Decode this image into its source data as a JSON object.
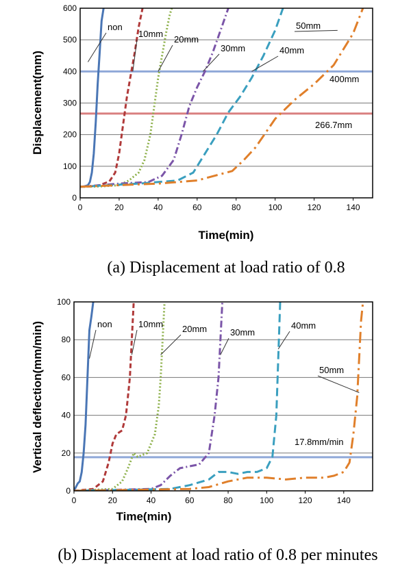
{
  "chart_data": [
    {
      "type": "line",
      "caption": "(a) Displacement at load ratio of 0.8",
      "xlabel": "Time(min)",
      "ylabel": "Displacement(mm)",
      "xlim": [
        0,
        150
      ],
      "ylim": [
        0,
        600
      ],
      "xticks": [
        0,
        20,
        40,
        60,
        80,
        100,
        120,
        140
      ],
      "yticks": [
        0,
        100,
        200,
        300,
        400,
        500,
        600
      ],
      "grid": true,
      "series": [
        {
          "name": "non",
          "color": "#4a76b5",
          "dash": "solid",
          "x": [
            0,
            2,
            4,
            5,
            6,
            7,
            8,
            9,
            10,
            11,
            12
          ],
          "y": [
            35,
            36,
            40,
            50,
            80,
            140,
            240,
            360,
            460,
            560,
            600
          ]
        },
        {
          "name": "10mm",
          "color": "#b03a3a",
          "dash": "dash",
          "x": [
            0,
            5,
            10,
            15,
            18,
            20,
            22,
            24,
            26,
            28,
            30,
            32
          ],
          "y": [
            35,
            36,
            40,
            52,
            80,
            140,
            230,
            320,
            390,
            460,
            540,
            600
          ]
        },
        {
          "name": "20mm",
          "color": "#8db04a",
          "dash": "dot",
          "x": [
            0,
            10,
            20,
            25,
            30,
            33,
            36,
            38,
            40,
            42,
            44,
            46,
            47
          ],
          "y": [
            35,
            36,
            40,
            55,
            80,
            120,
            200,
            290,
            380,
            450,
            520,
            580,
            600
          ]
        },
        {
          "name": "30mm",
          "color": "#7b55a8",
          "dash": "dashdot",
          "x": [
            0,
            20,
            35,
            42,
            48,
            52,
            56,
            60,
            64,
            68,
            72,
            76
          ],
          "y": [
            35,
            45,
            50,
            70,
            120,
            200,
            290,
            350,
            400,
            460,
            530,
            600
          ]
        },
        {
          "name": "40mm",
          "color": "#3a9fbf",
          "dash": "longdash",
          "x": [
            0,
            30,
            50,
            58,
            64,
            70,
            76,
            82,
            88,
            94,
            100,
            104
          ],
          "y": [
            35,
            45,
            55,
            80,
            140,
            200,
            270,
            320,
            380,
            450,
            530,
            600
          ]
        },
        {
          "name": "50mm",
          "color": "#e07f2a",
          "dash": "longdashdot",
          "x": [
            0,
            40,
            60,
            78,
            84,
            90,
            100,
            110,
            120,
            130,
            140,
            145
          ],
          "y": [
            35,
            45,
            55,
            85,
            120,
            160,
            250,
            310,
            360,
            420,
            520,
            600
          ]
        }
      ],
      "reference_lines": [
        {
          "y": 400,
          "color": "#8fa8d8",
          "label": "400mm"
        },
        {
          "y": 266.7,
          "color": "#d97f7f",
          "label": "266.7mm"
        }
      ]
    },
    {
      "type": "line",
      "caption": "(b) Displacement at load ratio of 0.8 per minutes",
      "xlabel": "Time(min)",
      "ylabel": "Vertical deflection(mm/min)",
      "xlim": [
        0,
        155
      ],
      "ylim": [
        0,
        100
      ],
      "xticks": [
        0,
        20,
        40,
        60,
        80,
        100,
        120,
        140
      ],
      "yticks": [
        0,
        20,
        40,
        60,
        80,
        100
      ],
      "grid": true,
      "series": [
        {
          "name": "non",
          "color": "#4a76b5",
          "dash": "solid",
          "x": [
            0,
            1,
            2,
            3,
            4,
            5,
            6,
            7,
            8,
            9,
            10
          ],
          "y": [
            0,
            2,
            4,
            5,
            10,
            20,
            35,
            60,
            85,
            92,
            100
          ]
        },
        {
          "name": "10mm",
          "color": "#b03a3a",
          "dash": "dash",
          "x": [
            0,
            10,
            15,
            18,
            20,
            22,
            25,
            27,
            28,
            29,
            30,
            31
          ],
          "y": [
            0,
            1,
            5,
            15,
            25,
            30,
            32,
            40,
            50,
            60,
            80,
            100
          ]
        },
        {
          "name": "20mm",
          "color": "#8db04a",
          "dash": "dot",
          "x": [
            0,
            20,
            25,
            28,
            31,
            33,
            38,
            42,
            44,
            45,
            46,
            47
          ],
          "y": [
            0,
            1,
            5,
            12,
            20,
            18,
            20,
            30,
            45,
            60,
            80,
            100
          ]
        },
        {
          "name": "30mm",
          "color": "#7b55a8",
          "dash": "dashdot",
          "x": [
            0,
            40,
            45,
            50,
            55,
            60,
            65,
            70,
            73,
            75,
            76,
            77
          ],
          "y": [
            0,
            1,
            3,
            8,
            12,
            13,
            14,
            20,
            40,
            60,
            80,
            100
          ]
        },
        {
          "name": "40mm",
          "color": "#3a9fbf",
          "dash": "longdash",
          "x": [
            0,
            50,
            60,
            70,
            75,
            80,
            85,
            90,
            95,
            100,
            103,
            105,
            106,
            107
          ],
          "y": [
            0,
            1,
            3,
            6,
            10,
            10,
            9,
            10,
            10,
            12,
            18,
            40,
            70,
            100
          ]
        },
        {
          "name": "50mm",
          "color": "#e07f2a",
          "dash": "longdashdot",
          "x": [
            0,
            60,
            70,
            80,
            90,
            100,
            110,
            120,
            130,
            135,
            140,
            143,
            145,
            147,
            148,
            149,
            150
          ],
          "y": [
            0,
            1,
            2,
            5,
            7,
            7,
            6,
            7,
            7,
            8,
            10,
            15,
            30,
            50,
            70,
            90,
            100
          ]
        }
      ],
      "reference_lines": [
        {
          "y": 17.8,
          "color": "#8fa8d8",
          "label": "17.8mm/min"
        }
      ]
    }
  ]
}
